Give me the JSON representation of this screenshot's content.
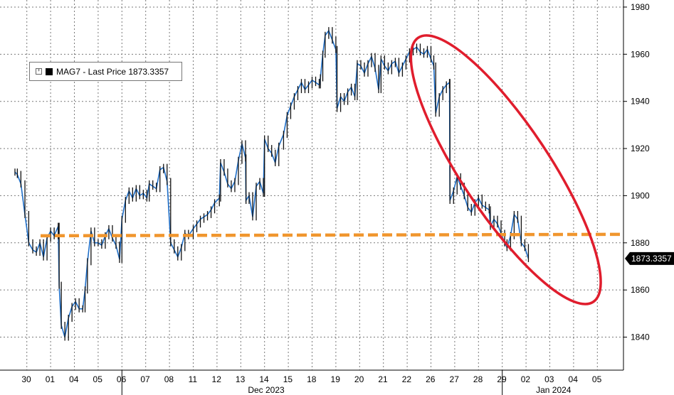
{
  "chart_data": {
    "type": "line",
    "title": "",
    "xlabel": "",
    "ylabel": "",
    "series": [
      {
        "name": "MAG7 - Last Price 1873.3357",
        "values": [
          1910,
          1909,
          1905,
          1892,
          1880,
          1877,
          1876,
          1880,
          1874,
          1882,
          1885,
          1883,
          1887,
          1862,
          1845,
          1840,
          1848,
          1853,
          1855,
          1852,
          1852,
          1860,
          1872,
          1885,
          1880,
          1880,
          1879,
          1883,
          1886,
          1882,
          1879,
          1873,
          1890,
          1898,
          1902,
          1899,
          1903,
          1900,
          1901,
          1899,
          1905,
          1904,
          1903,
          1911,
          1912,
          1906,
          1880,
          1877,
          1874,
          1878,
          1884,
          1883,
          1886,
          1888,
          1890,
          1891,
          1892,
          1894,
          1897,
          1899,
          1914,
          1910,
          1905,
          1903,
          1906,
          1915,
          1922,
          1916,
          1898,
          1900,
          1891,
          1904,
          1906,
          1901,
          1924,
          1920,
          1918,
          1914,
          1921,
          1926,
          1934,
          1938,
          1942,
          1945,
          1948,
          1945,
          1947,
          1949,
          1948,
          1947,
          1950,
          1960,
          1968,
          1970,
          1966,
          1962,
          1937,
          1942,
          1940,
          1944,
          1946,
          1942,
          1956,
          1955,
          1952,
          1956,
          1959,
          1954,
          1945,
          1958,
          1955,
          1953,
          1956,
          1957,
          1952,
          1955,
          1958,
          1961,
          1962,
          1963,
          1961,
          1960,
          1962,
          1958,
          1955,
          1935,
          1942,
          1945,
          1947,
          1948,
          1898,
          1902,
          1908,
          1904,
          1900,
          1895,
          1893,
          1897,
          1899,
          1896,
          1895,
          1894,
          1887,
          1890,
          1888,
          1884,
          1880,
          1878,
          1883,
          1892,
          1890,
          1880,
          1878,
          1873.3357
        ]
      }
    ],
    "x": [
      0,
      0.1,
      0.25,
      0.42,
      0.58,
      0.75,
      0.9,
      1.05,
      1.2,
      1.35,
      1.5,
      1.65,
      1.82,
      1.86,
      1.95,
      2.1,
      2.25,
      2.4,
      2.55,
      2.7,
      2.85,
      2.95,
      3.05,
      3.2,
      3.35,
      3.5,
      3.65,
      3.8,
      3.95,
      4.1,
      4.25,
      4.4,
      4.5,
      4.65,
      4.8,
      4.95,
      5.1,
      5.25,
      5.4,
      5.55,
      5.65,
      5.8,
      5.95,
      6.1,
      6.25,
      6.4,
      6.55,
      6.7,
      6.85,
      7.0,
      7.15,
      7.3,
      7.5,
      7.65,
      7.8,
      7.95,
      8.1,
      8.25,
      8.4,
      8.6,
      8.65,
      8.8,
      8.95,
      9.1,
      9.25,
      9.4,
      9.55,
      9.7,
      9.72,
      9.85,
      10.0,
      10.15,
      10.3,
      10.45,
      10.5,
      10.65,
      10.8,
      10.95,
      11.1,
      11.3,
      11.45,
      11.6,
      11.75,
      11.9,
      12.05,
      12.2,
      12.35,
      12.5,
      12.65,
      12.8,
      12.85,
      12.95,
      13.05,
      13.2,
      13.35,
      13.5,
      13.55,
      13.7,
      13.85,
      14.0,
      14.15,
      14.3,
      14.4,
      14.55,
      14.7,
      14.85,
      15.0,
      15.15,
      15.3,
      15.4,
      15.55,
      15.7,
      15.85,
      16.0,
      16.15,
      16.3,
      16.45,
      16.6,
      16.75,
      16.9,
      17.05,
      17.2,
      17.35,
      17.5,
      17.62,
      17.7,
      17.85,
      18.0,
      18.15,
      18.28,
      18.3,
      18.45,
      18.6,
      18.75,
      18.9,
      19.05,
      19.2,
      19.35,
      19.5,
      19.65,
      19.8,
      19.95,
      20.0,
      20.15,
      20.3,
      20.45,
      20.6,
      20.7,
      20.85,
      21.0,
      21.15,
      21.3,
      21.45,
      21.6
    ],
    "categories": [
      "30",
      "01",
      "04",
      "05",
      "06",
      "07",
      "08",
      "11",
      "12",
      "13",
      "14",
      "15",
      "18",
      "19",
      "20",
      "21",
      "22",
      "26",
      "27",
      "28",
      "29",
      "02",
      "03",
      "04",
      "05"
    ],
    "month_labels": [
      "Dec 2023",
      "Jan 2024"
    ],
    "y_ticks": [
      1840,
      1860,
      1880,
      1900,
      1920,
      1940,
      1960,
      1980
    ],
    "ylim": [
      1826,
      1983
    ],
    "last_price_label": "1873.3357",
    "reference_level": 1883,
    "annotation": "ellipse highlighting January decline",
    "grid": true,
    "legend_position": "top-left",
    "colors": {
      "line": "#1f6fc9",
      "bar": "#111111",
      "reference": "#f0962e",
      "ellipse": "#e01d2d",
      "price_tag_bg": "#000000",
      "price_tag_text": "#ffffff"
    }
  },
  "legend": {
    "expand_icon": "plus-square-icon",
    "label": "MAG7 - Last Price 1873.3357"
  }
}
